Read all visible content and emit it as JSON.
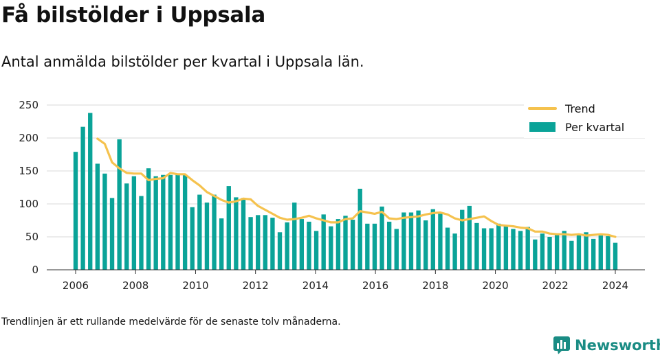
{
  "title": "Få bilstölder i Uppsala",
  "subtitle": "Antal anmälda bilstölder per kvartal i Uppsala län.",
  "footnote": "Trendlinjen är ett rullande medelvärde för de senaste tolv månaderna.",
  "brand": {
    "name": "Newsworthy",
    "color": "#1a8c84",
    "icon": "bar-chart-icon"
  },
  "colors": {
    "bars": "#0aa398",
    "trend": "#f5c24e",
    "grid": "#d9d9d9"
  },
  "chart_data": {
    "type": "bar",
    "x_axis": {
      "start": 2006,
      "end": 2024,
      "ticks": [
        2006,
        2008,
        2010,
        2012,
        2014,
        2016,
        2018,
        2020,
        2022,
        2024
      ]
    },
    "y_axis": {
      "min": 0,
      "max": 250,
      "ticks": [
        0,
        50,
        100,
        150,
        200,
        250
      ]
    },
    "grid": true,
    "legend_position": "top-right",
    "series": [
      {
        "name": "Per kvartal",
        "type": "bar",
        "values": [
          179,
          217,
          238,
          161,
          146,
          109,
          198,
          131,
          142,
          112,
          154,
          142,
          144,
          144,
          146,
          144,
          95,
          114,
          102,
          114,
          78,
          127,
          110,
          109,
          80,
          83,
          83,
          79,
          57,
          72,
          102,
          77,
          73,
          59,
          84,
          66,
          77,
          82,
          76,
          123,
          70,
          70,
          96,
          73,
          62,
          87,
          87,
          90,
          75,
          92,
          85,
          64,
          55,
          91,
          97,
          71,
          63,
          63,
          70,
          66,
          62,
          59,
          65,
          46,
          55,
          50,
          54,
          59,
          44,
          54,
          57,
          47,
          52,
          51,
          41
        ]
      },
      {
        "name": "Trend",
        "type": "line",
        "values": [
          null,
          null,
          null,
          199,
          191,
          163,
          154,
          147,
          146,
          146,
          136,
          138,
          139,
          147,
          145,
          145,
          136,
          128,
          118,
          112,
          106,
          102,
          104,
          108,
          107,
          97,
          91,
          85,
          79,
          76,
          77,
          79,
          82,
          78,
          75,
          72,
          72,
          77,
          78,
          89,
          87,
          85,
          88,
          78,
          77,
          79,
          80,
          81,
          84,
          86,
          87,
          84,
          78,
          75,
          77,
          79,
          81,
          74,
          68,
          67,
          66,
          64,
          63,
          58,
          58,
          55,
          54,
          54,
          53,
          54,
          52,
          53,
          54,
          53,
          50
        ]
      }
    ]
  }
}
